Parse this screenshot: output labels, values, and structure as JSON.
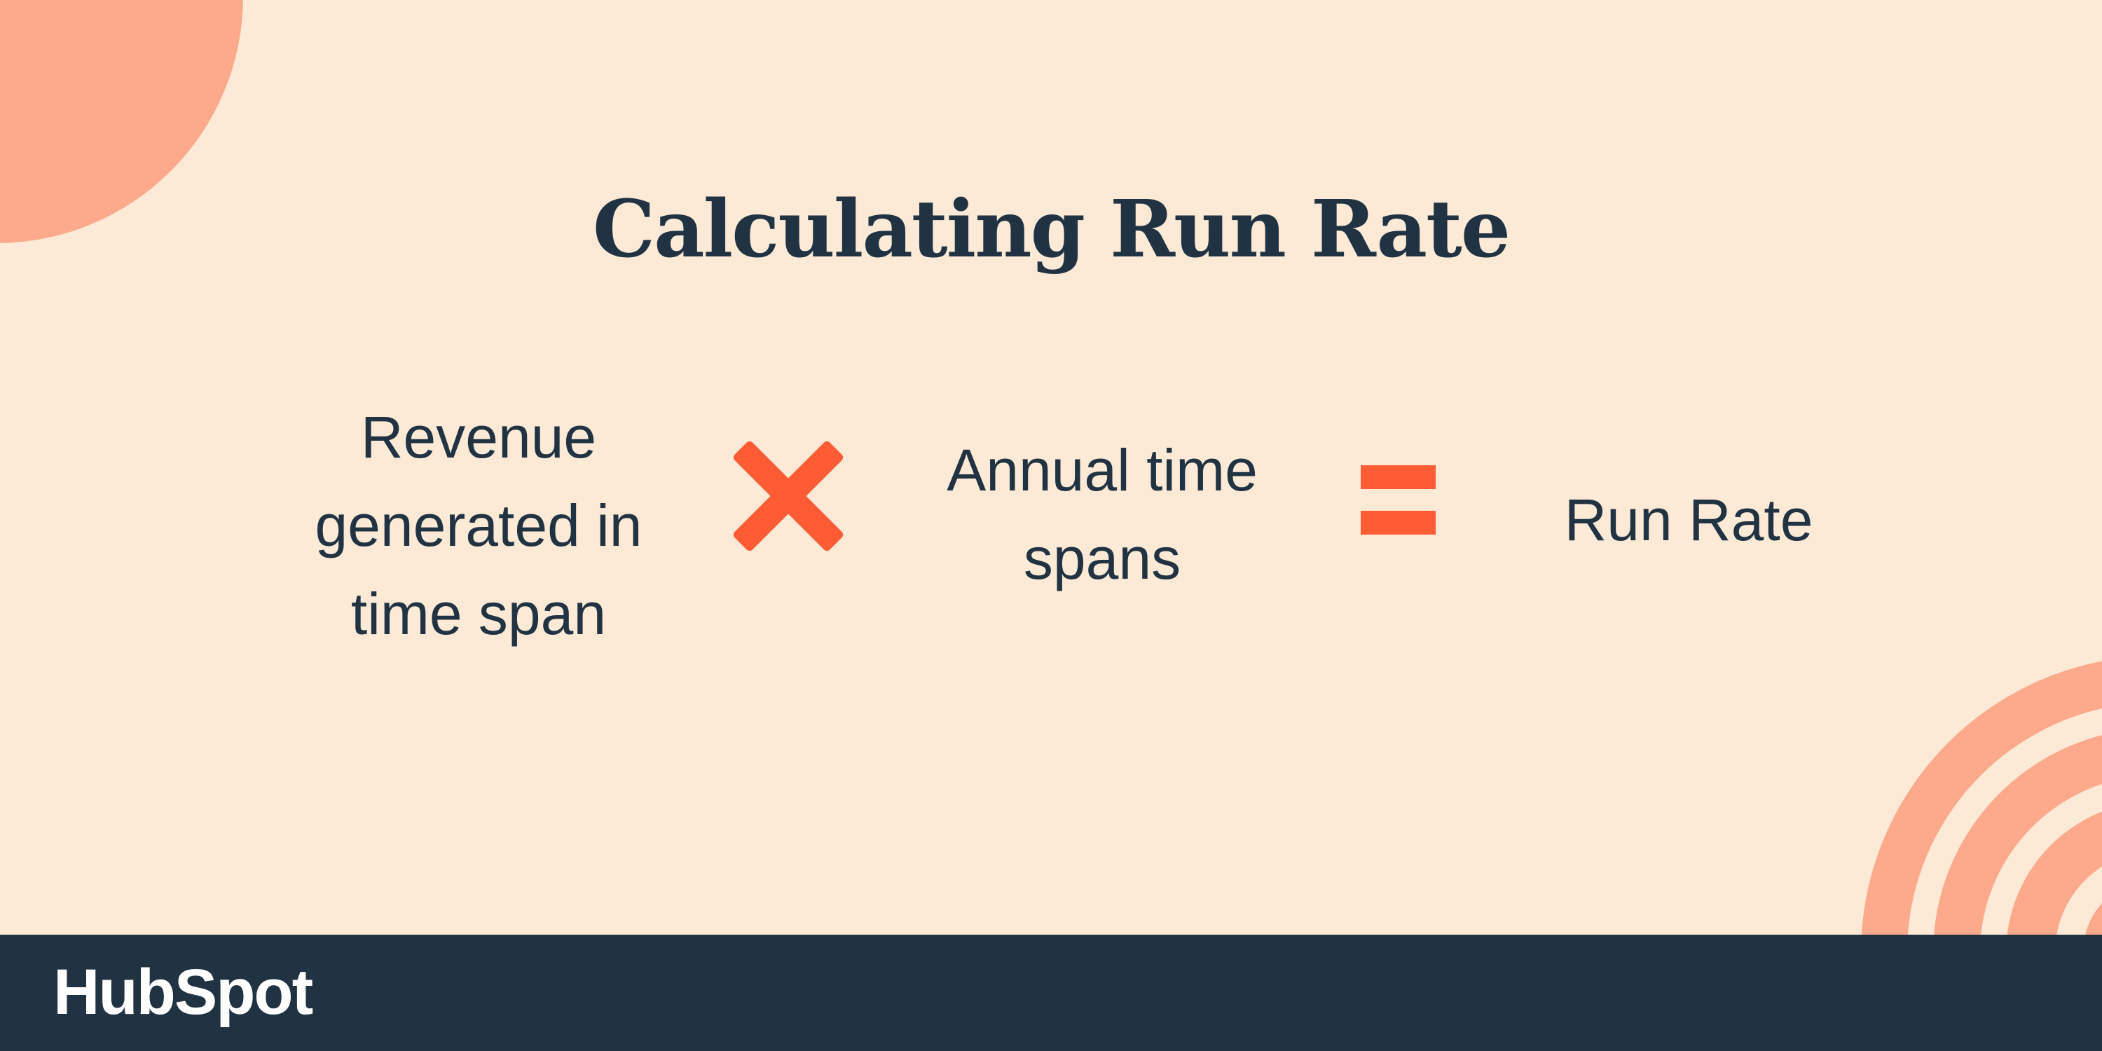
{
  "title": "Calculating Run Rate",
  "formula": {
    "term1": [
      "Revenue",
      "generated in",
      "time span"
    ],
    "operator1_icon": "multiply-icon",
    "term2": [
      "Annual time",
      "spans"
    ],
    "operator2_icon": "equals-icon",
    "result": "Run Rate"
  },
  "footer": {
    "logo": "HubSpot"
  },
  "colors": {
    "background": "#FCEAD7",
    "accent_light": "#FDA98B",
    "accent": "#FF5C35",
    "navy": "#213343"
  }
}
